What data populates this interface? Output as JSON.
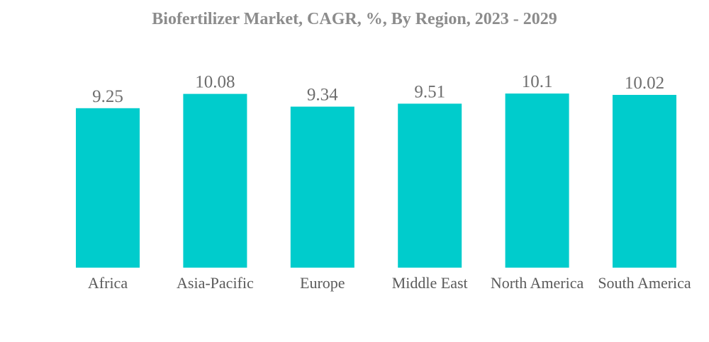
{
  "chart_data": {
    "type": "bar",
    "title": "Biofertilizer Market, CAGR, %, By Region, 2023 - 2029",
    "categories": [
      "Africa",
      "Asia-Pacific",
      "Europe",
      "Middle East",
      "North America",
      "South America"
    ],
    "values": [
      9.25,
      10.08,
      9.34,
      9.51,
      10.1,
      10.02
    ],
    "value_labels": [
      "9.25",
      "10.08",
      "9.34",
      "9.51",
      "10.1",
      "10.02"
    ],
    "xlabel": "",
    "ylabel": "",
    "grid": false,
    "legend": "none",
    "bar_color": "#00cccc",
    "title_color": "#8c8c8c"
  }
}
